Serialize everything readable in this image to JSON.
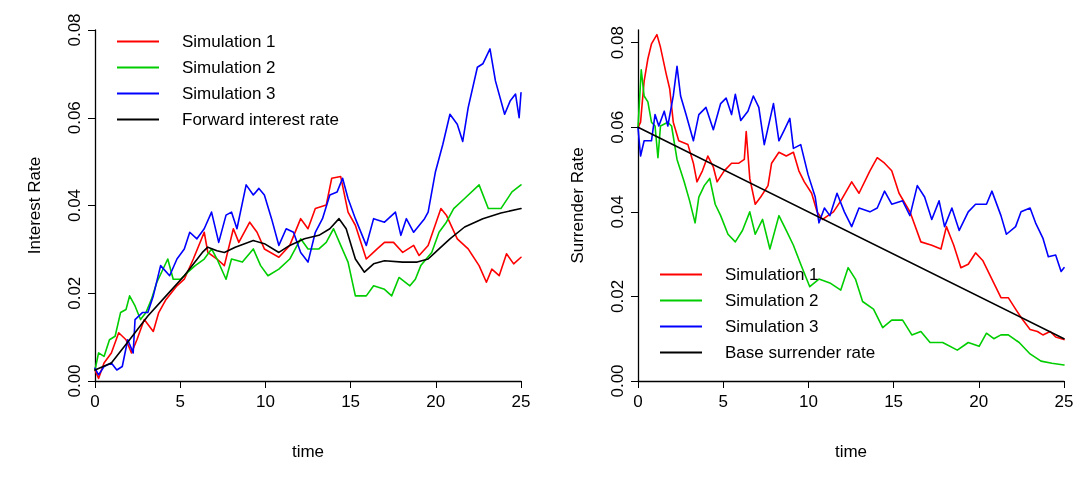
{
  "chart_data": [
    {
      "type": "line",
      "xlabel": "time",
      "ylabel": "Interest Rate",
      "xlim": [
        0,
        25
      ],
      "ylim": [
        0,
        0.08
      ],
      "xticks": [
        0,
        5,
        10,
        15,
        20,
        25
      ],
      "yticks": [
        {
          "value": 0,
          "label": "0.00"
        },
        {
          "value": 0.02,
          "label": "0.02"
        },
        {
          "value": 0.04,
          "label": "0.04"
        },
        {
          "value": 0.06,
          "label": "0.06"
        },
        {
          "value": 0.08,
          "label": "0.08"
        }
      ],
      "grid": false,
      "legend": "top left",
      "series": [
        {
          "name": "Simulation 1",
          "color": "#ff0000",
          "x": [
            0,
            0.21,
            0.53,
            0.96,
            1.39,
            1.82,
            2.14,
            2.46,
            2.89,
            3.42,
            3.74,
            4.17,
            4.81,
            5.24,
            5.77,
            6.41,
            6.62,
            7.16,
            7.59,
            8.12,
            8.44,
            9.08,
            9.51,
            9.94,
            10.79,
            11.43,
            12.07,
            12.5,
            12.93,
            13.57,
            13.89,
            14.42,
            14.85,
            15.28,
            15.92,
            16.56,
            16.99,
            17.52,
            18.06,
            18.7,
            19.02,
            19.55,
            20.3,
            20.62,
            21.26,
            21.9,
            22.54,
            22.97,
            23.29,
            23.72,
            24.15,
            24.57,
            25
          ],
          "values": [
            0.0025,
            0.0006,
            0.0041,
            0.0064,
            0.011,
            0.0094,
            0.0064,
            0.0094,
            0.014,
            0.0113,
            0.0156,
            0.0186,
            0.0217,
            0.0232,
            0.0278,
            0.0339,
            0.0293,
            0.0278,
            0.0263,
            0.0347,
            0.0316,
            0.0362,
            0.0339,
            0.0301,
            0.0282,
            0.0309,
            0.037,
            0.0347,
            0.0393,
            0.0401,
            0.0462,
            0.0466,
            0.0385,
            0.0355,
            0.0278,
            0.0301,
            0.0316,
            0.0316,
            0.0293,
            0.0309,
            0.0286,
            0.0309,
            0.0393,
            0.0378,
            0.0324,
            0.0301,
            0.0263,
            0.0225,
            0.0255,
            0.024,
            0.029,
            0.0267,
            0.0282
          ]
        },
        {
          "name": "Simulation 2",
          "color": "#00cd00",
          "x": [
            0,
            0.21,
            0.53,
            0.85,
            1.18,
            1.5,
            1.82,
            2.03,
            2.35,
            2.67,
            2.99,
            3.31,
            3.63,
            4.27,
            4.59,
            5.02,
            5.45,
            5.88,
            6.41,
            6.84,
            7.16,
            7.69,
            8.01,
            8.65,
            9.29,
            9.72,
            10.15,
            10.79,
            11.43,
            12.07,
            12.5,
            13.14,
            13.57,
            14,
            14.42,
            14.85,
            15.28,
            15.92,
            16.35,
            16.99,
            17.41,
            17.84,
            18.48,
            18.8,
            19.12,
            19.76,
            20.19,
            20.62,
            21.05,
            21.69,
            22.54,
            23.08,
            23.82,
            24.47,
            25
          ],
          "values": [
            0.0025,
            0.0064,
            0.0056,
            0.0094,
            0.0102,
            0.0156,
            0.0163,
            0.0194,
            0.0171,
            0.014,
            0.0156,
            0.0186,
            0.0225,
            0.0278,
            0.0232,
            0.0232,
            0.0248,
            0.0263,
            0.0278,
            0.0301,
            0.0278,
            0.0232,
            0.0278,
            0.0271,
            0.0301,
            0.0263,
            0.024,
            0.0255,
            0.0278,
            0.0324,
            0.0301,
            0.0301,
            0.0316,
            0.0347,
            0.0309,
            0.0271,
            0.0194,
            0.0194,
            0.0217,
            0.0209,
            0.0194,
            0.0236,
            0.0217,
            0.0232,
            0.0263,
            0.0293,
            0.0339,
            0.0362,
            0.0393,
            0.0416,
            0.0447,
            0.0393,
            0.0393,
            0.0431,
            0.0447
          ]
        },
        {
          "name": "Simulation 3",
          "color": "#0000ff",
          "x": [
            0,
            0.21,
            0.53,
            0.96,
            1.28,
            1.6,
            1.92,
            2.24,
            2.35,
            2.78,
            3.1,
            3.42,
            3.85,
            4.38,
            4.81,
            5.24,
            5.56,
            5.98,
            6.41,
            6.84,
            7.26,
            7.69,
            8.01,
            8.33,
            8.87,
            9.29,
            9.62,
            9.94,
            10.36,
            10.79,
            11.22,
            11.65,
            12.07,
            12.5,
            12.93,
            13.35,
            13.78,
            14.21,
            14.53,
            14.85,
            15.28,
            15.92,
            16.35,
            16.99,
            17.63,
            17.95,
            18.27,
            18.7,
            19.34,
            19.55,
            19.98,
            20.41,
            20.83,
            21.26,
            21.58,
            21.9,
            22.44,
            22.76,
            23.18,
            23.5,
            24.04,
            24.36,
            24.68,
            24.89,
            25
          ],
          "values": [
            0.0029,
            0.0014,
            0.0033,
            0.0041,
            0.0025,
            0.0033,
            0.0094,
            0.0064,
            0.014,
            0.0156,
            0.0156,
            0.0194,
            0.0263,
            0.024,
            0.0278,
            0.0301,
            0.0339,
            0.0324,
            0.0347,
            0.0385,
            0.0316,
            0.0378,
            0.0385,
            0.0347,
            0.0447,
            0.0424,
            0.0439,
            0.0424,
            0.037,
            0.0309,
            0.0347,
            0.0339,
            0.0293,
            0.0271,
            0.0339,
            0.037,
            0.0424,
            0.0431,
            0.0462,
            0.0416,
            0.037,
            0.0309,
            0.037,
            0.0362,
            0.0385,
            0.0332,
            0.037,
            0.0339,
            0.037,
            0.0385,
            0.0477,
            0.0539,
            0.0608,
            0.0585,
            0.0546,
            0.0623,
            0.0715,
            0.0723,
            0.0757,
            0.0684,
            0.0608,
            0.0638,
            0.0654,
            0.06,
            0.0657
          ]
        },
        {
          "name": "Forward interest rate",
          "color": "#000000",
          "x": [
            0,
            0.96,
            2.03,
            3.1,
            4.17,
            5.24,
            6.3,
            6.62,
            7.16,
            7.59,
            8.23,
            9.29,
            9.94,
            10.79,
            11.43,
            12.29,
            13.14,
            13.78,
            14.32,
            14.74,
            15.28,
            15.81,
            16.35,
            16.99,
            18.06,
            18.91,
            19.55,
            20.19,
            20.83,
            21.69,
            22.76,
            23.82,
            25
          ],
          "values": [
            0.0025,
            0.0041,
            0.0094,
            0.0148,
            0.0194,
            0.024,
            0.0293,
            0.0305,
            0.0297,
            0.0293,
            0.0305,
            0.032,
            0.0313,
            0.0293,
            0.0309,
            0.0324,
            0.0332,
            0.0347,
            0.037,
            0.0347,
            0.0278,
            0.0248,
            0.0267,
            0.0274,
            0.0271,
            0.0271,
            0.0278,
            0.0301,
            0.0324,
            0.0351,
            0.037,
            0.0383,
            0.0393
          ]
        }
      ]
    },
    {
      "type": "line",
      "xlabel": "time",
      "ylabel": "Surrender Rate",
      "xlim": [
        0,
        25
      ],
      "ylim": [
        0,
        0.083
      ],
      "xticks": [
        0,
        5,
        10,
        15,
        20,
        25
      ],
      "yticks": [
        {
          "value": 0,
          "label": "0.00"
        },
        {
          "value": 0.02,
          "label": "0.02"
        },
        {
          "value": 0.04,
          "label": "0.04"
        },
        {
          "value": 0.06,
          "label": "0.06"
        },
        {
          "value": 0.08,
          "label": "0.08"
        }
      ],
      "grid": false,
      "legend": "bottom left",
      "series": [
        {
          "name": "Simulation 1",
          "color": "#ff0000",
          "x": [
            0,
            0.15,
            0.36,
            0.58,
            0.79,
            1.11,
            1.32,
            1.65,
            1.86,
            2.07,
            2.39,
            2.93,
            3.25,
            3.46,
            3.78,
            4.1,
            4.42,
            4.64,
            5.06,
            5.49,
            5.92,
            6.24,
            6.35,
            6.56,
            6.88,
            7.2,
            7.63,
            7.84,
            8.27,
            8.7,
            9.12,
            9.44,
            9.76,
            10.19,
            10.51,
            10.83,
            11.47,
            11.9,
            12.54,
            12.97,
            13.61,
            14.04,
            14.47,
            14.89,
            15.32,
            15.96,
            16.6,
            17.24,
            17.78,
            18.1,
            18.53,
            18.95,
            19.38,
            19.81,
            20.23,
            20.66,
            21.3,
            21.73,
            22.16,
            22.59,
            23.01,
            23.44,
            23.76,
            24.19,
            24.51,
            25
          ],
          "values": [
            0.0599,
            0.0612,
            0.0709,
            0.0762,
            0.0797,
            0.0819,
            0.0789,
            0.0727,
            0.0691,
            0.0612,
            0.0568,
            0.0559,
            0.0515,
            0.0471,
            0.0497,
            0.0532,
            0.0506,
            0.0471,
            0.0497,
            0.0515,
            0.0515,
            0.0524,
            0.059,
            0.0479,
            0.0418,
            0.0435,
            0.0462,
            0.0515,
            0.0541,
            0.0532,
            0.0541,
            0.0497,
            0.0471,
            0.0444,
            0.04,
            0.0382,
            0.04,
            0.0426,
            0.0471,
            0.0444,
            0.0497,
            0.0528,
            0.0515,
            0.0497,
            0.0444,
            0.04,
            0.0329,
            0.0321,
            0.0312,
            0.0365,
            0.0321,
            0.0268,
            0.0276,
            0.0303,
            0.0285,
            0.025,
            0.0197,
            0.0197,
            0.017,
            0.0144,
            0.0122,
            0.0117,
            0.0109,
            0.0117,
            0.0104,
            0.0098
          ]
        },
        {
          "name": "Simulation 2",
          "color": "#00cd00",
          "x": [
            0,
            0.19,
            0.36,
            0.58,
            0.79,
            1.0,
            1.17,
            1.32,
            1.75,
            1.97,
            2.29,
            2.71,
            3.03,
            3.35,
            3.57,
            3.89,
            4.21,
            4.53,
            4.85,
            5.28,
            5.71,
            6.13,
            6.56,
            6.88,
            7.31,
            7.74,
            8.27,
            8.7,
            9.12,
            9.55,
            10.08,
            10.62,
            11.26,
            11.9,
            12.33,
            12.76,
            13.18,
            13.82,
            14.36,
            14.89,
            15.53,
            16.07,
            16.6,
            17.14,
            17.88,
            18.74,
            19.38,
            20.02,
            20.45,
            20.88,
            21.3,
            21.73,
            22.37,
            23.01,
            23.65,
            24.29,
            25
          ],
          "values": [
            0.0599,
            0.0736,
            0.0674,
            0.066,
            0.0612,
            0.0603,
            0.0528,
            0.0603,
            0.0612,
            0.0603,
            0.0524,
            0.0471,
            0.0426,
            0.0374,
            0.0435,
            0.0462,
            0.0479,
            0.0418,
            0.0391,
            0.0347,
            0.0329,
            0.0356,
            0.04,
            0.0347,
            0.0382,
            0.0312,
            0.0391,
            0.0356,
            0.0321,
            0.0276,
            0.0223,
            0.0241,
            0.0232,
            0.0215,
            0.0268,
            0.0241,
            0.0188,
            0.017,
            0.0126,
            0.0144,
            0.0144,
            0.0109,
            0.0117,
            0.0091,
            0.0091,
            0.0073,
            0.0091,
            0.0082,
            0.0113,
            0.01,
            0.0109,
            0.0109,
            0.0091,
            0.0064,
            0.0047,
            0.0042,
            0.0038
          ]
        },
        {
          "name": "Simulation 3",
          "color": "#0000ff",
          "x": [
            0,
            0.15,
            0.36,
            0.79,
            1.0,
            1.22,
            1.54,
            1.75,
            2.07,
            2.29,
            2.5,
            2.82,
            3.25,
            3.57,
            3.99,
            4.42,
            4.85,
            5.17,
            5.49,
            5.71,
            6.03,
            6.45,
            6.77,
            7.09,
            7.41,
            7.95,
            8.27,
            8.59,
            8.91,
            9.12,
            9.55,
            9.98,
            10.4,
            10.62,
            10.94,
            11.26,
            11.68,
            12.11,
            12.54,
            12.97,
            13.61,
            14.04,
            14.47,
            14.89,
            15.53,
            15.96,
            16.39,
            16.82,
            17.24,
            17.67,
            17.99,
            18.42,
            18.85,
            19.38,
            19.81,
            20.45,
            20.77,
            21.3,
            21.62,
            22.16,
            22.48,
            23.01,
            23.33,
            23.76,
            24.08,
            24.51,
            24.83,
            25
          ],
          "values": [
            0.0599,
            0.0532,
            0.0568,
            0.0568,
            0.063,
            0.0603,
            0.0638,
            0.0603,
            0.0674,
            0.0744,
            0.0674,
            0.063,
            0.0568,
            0.063,
            0.0647,
            0.0594,
            0.0656,
            0.0669,
            0.063,
            0.0678,
            0.0616,
            0.0638,
            0.0674,
            0.0647,
            0.0559,
            0.0656,
            0.0568,
            0.0594,
            0.0621,
            0.055,
            0.0559,
            0.0488,
            0.0435,
            0.0374,
            0.0409,
            0.0391,
            0.0444,
            0.04,
            0.0365,
            0.0409,
            0.04,
            0.0409,
            0.0449,
            0.0418,
            0.0426,
            0.0391,
            0.0462,
            0.0435,
            0.0382,
            0.0426,
            0.0365,
            0.0409,
            0.0356,
            0.04,
            0.0418,
            0.0418,
            0.0449,
            0.0391,
            0.0347,
            0.0365,
            0.04,
            0.0409,
            0.0374,
            0.0338,
            0.0294,
            0.0298,
            0.0259,
            0.0268
          ]
        },
        {
          "name": "Base surrender rate",
          "color": "#000000",
          "x": [
            0,
            25
          ],
          "values": [
            0.06,
            0.01
          ]
        }
      ]
    }
  ]
}
